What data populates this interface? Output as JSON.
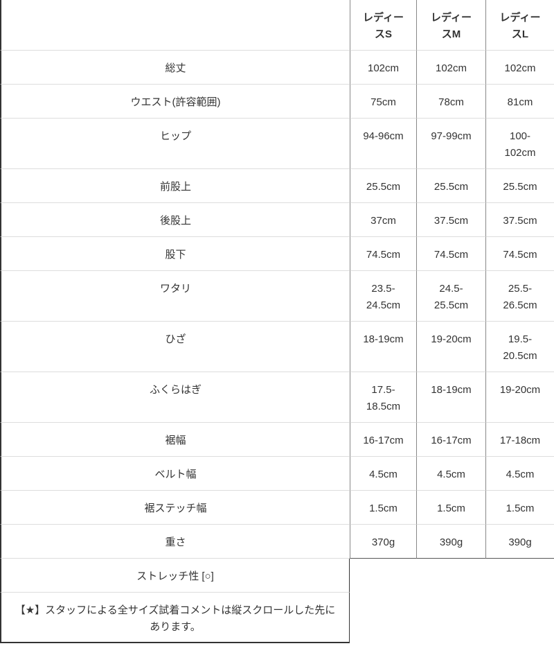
{
  "header": [
    "",
    "レディースS",
    "レディースM",
    "レディースL"
  ],
  "rows": [
    {
      "label": "総丈",
      "values": [
        "102cm",
        "102cm",
        "102cm"
      ]
    },
    {
      "label": "ウエスト(許容範囲)",
      "values": [
        "75cm",
        "78cm",
        "81cm"
      ]
    },
    {
      "label": "ヒップ",
      "values": [
        "94-96cm",
        "97-99cm",
        "100-102cm"
      ]
    },
    {
      "label": "前股上",
      "values": [
        "25.5cm",
        "25.5cm",
        "25.5cm"
      ]
    },
    {
      "label": "後股上",
      "values": [
        "37cm",
        "37.5cm",
        "37.5cm"
      ]
    },
    {
      "label": "股下",
      "values": [
        "74.5cm",
        "74.5cm",
        "74.5cm"
      ]
    },
    {
      "label": "ワタリ",
      "values": [
        "23.5-24.5cm",
        "24.5-25.5cm",
        "25.5-26.5cm"
      ]
    },
    {
      "label": "ひざ",
      "values": [
        "18-19cm",
        "19-20cm",
        "19.5-20.5cm"
      ]
    },
    {
      "label": "ふくらはぎ",
      "values": [
        "17.5-18.5cm",
        "18-19cm",
        "19-20cm"
      ]
    },
    {
      "label": "裾幅",
      "values": [
        "16-17cm",
        "16-17cm",
        "17-18cm"
      ]
    },
    {
      "label": "ベルト幅",
      "values": [
        "4.5cm",
        "4.5cm",
        "4.5cm"
      ]
    },
    {
      "label": "裾ステッチ幅",
      "values": [
        "1.5cm",
        "1.5cm",
        "1.5cm"
      ]
    },
    {
      "label": "重さ",
      "values": [
        "370g",
        "390g",
        "390g"
      ]
    }
  ],
  "notes": [
    "ストレッチ性 [○]",
    "【★】スタッフによる全サイズ試着コメントは縦スクロールした先にあります。"
  ]
}
